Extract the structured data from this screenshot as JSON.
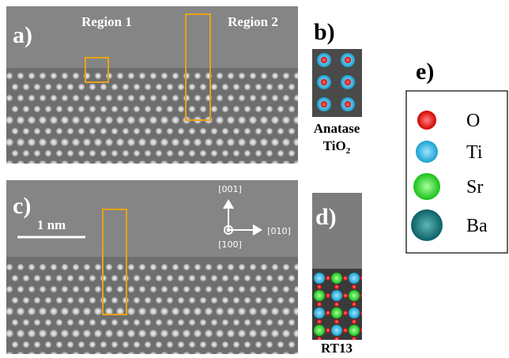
{
  "panels": {
    "a": {
      "label": "a)",
      "region_1": "Region 1",
      "region_2": "Region 2"
    },
    "b": {
      "label": "b)",
      "caption_line_1": "Anatase",
      "caption_line_2": {
        "text": "TiO",
        "subscript": "2"
      }
    },
    "c": {
      "label": "c)",
      "scale_bar": "1 nm",
      "directions": [
        "[001]",
        "[010]",
        "[100]"
      ]
    },
    "d": {
      "label": "d)",
      "caption": "RT13"
    },
    "e": {
      "label": "e)",
      "legend": [
        "O",
        "Ti",
        "Sr",
        "Ba"
      ]
    }
  }
}
